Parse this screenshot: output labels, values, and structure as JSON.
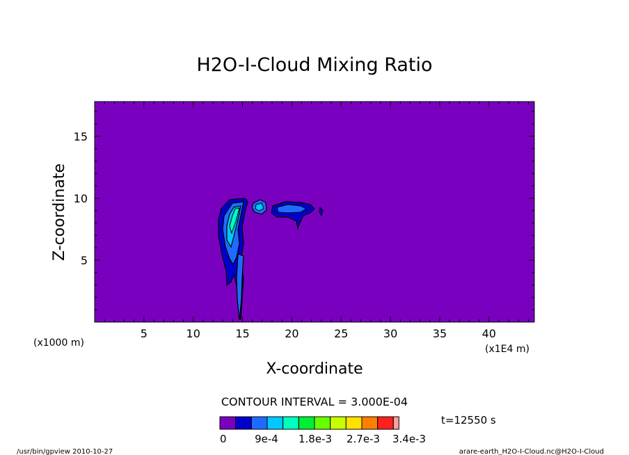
{
  "chart_data": {
    "type": "heatmap",
    "title": "H2O-I-Cloud Mixing Ratio",
    "xlabel": "X-coordinate",
    "ylabel": "Z-coordinate",
    "x_scale_note": "(x1E4 m)",
    "y_scale_note": "(x1000 m)",
    "xlim": [
      0,
      44.6
    ],
    "ylim": [
      0,
      17.8
    ],
    "x_ticks": [
      5,
      10,
      15,
      20,
      25,
      30,
      35,
      40
    ],
    "y_ticks": [
      5,
      10,
      15
    ],
    "contour_interval_text": "CONTOUR INTERVAL = 3.000E-04",
    "time_text": "t=12550 s",
    "colorbar": {
      "colors": [
        "#7a00c0",
        "#0000cc",
        "#1f6bff",
        "#00c8ff",
        "#00ffc0",
        "#00ee33",
        "#66ff00",
        "#c8ff00",
        "#ffe000",
        "#ff8000",
        "#ff2020",
        "#ff9e9e"
      ],
      "labels": [
        "0",
        "9e-4",
        "1.8e-3",
        "2.7e-3",
        "3.4e-3"
      ]
    },
    "background_color": "#7a00c0",
    "features": [
      {
        "name": "main cloud column",
        "x_center": 14.5,
        "z_center": 7.5,
        "max_level": 0.0012
      },
      {
        "name": "small blob",
        "x_center": 17.0,
        "z_center": 9.5,
        "max_level": 0.0006
      },
      {
        "name": "anvil extension",
        "x_center": 20.0,
        "z_center": 9.2,
        "max_level": 0.0006
      }
    ]
  },
  "footer": {
    "left": "/usr/bin/gpview  2010-10-27",
    "right": "arare-earth_H2O-I-Cloud.nc@H2O-I-Cloud"
  }
}
